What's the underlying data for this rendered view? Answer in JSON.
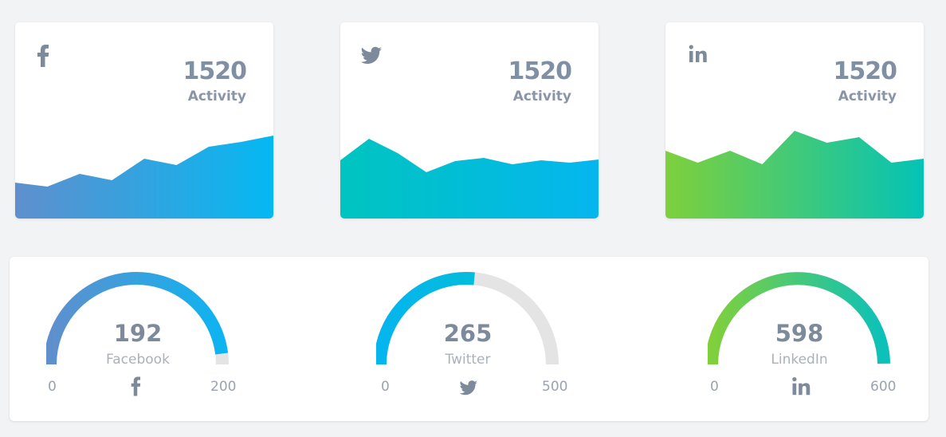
{
  "colors": {
    "icon": "#7d8a9c",
    "track": "#e4e4e4",
    "card_bg": "#ffffff",
    "page_bg": "#f2f3f5"
  },
  "cards": [
    {
      "network": "facebook",
      "icon": "facebook-icon",
      "value": "1520",
      "label": "Activity",
      "gradient": [
        "#5f8fcd",
        "#05b8f2"
      ],
      "series": [
        45,
        40,
        56,
        48,
        75,
        67,
        90,
        96,
        104
      ]
    },
    {
      "network": "twitter",
      "icon": "twitter-icon",
      "value": "1520",
      "label": "Activity",
      "gradient": [
        "#00c4c0",
        "#05b6ef"
      ],
      "series": [
        73,
        100,
        82,
        58,
        72,
        76,
        68,
        73,
        70,
        74
      ]
    },
    {
      "network": "linkedin",
      "icon": "linkedin-icon",
      "value": "1520",
      "label": "Activity",
      "gradient": [
        "#7ed03c",
        "#04c3b6"
      ],
      "series": [
        85,
        70,
        85,
        68,
        110,
        95,
        102,
        70,
        75
      ]
    }
  ],
  "gauges": [
    {
      "network": "facebook",
      "icon": "facebook-icon",
      "value": "192",
      "current": 192,
      "label": "Facebook",
      "min": "0",
      "max": "200",
      "max_value": 200,
      "gradient": [
        "#5f8fcd",
        "#0db4f0"
      ]
    },
    {
      "network": "twitter",
      "icon": "twitter-icon",
      "value": "265",
      "current": 265,
      "label": "Twitter",
      "min": "0",
      "max": "500",
      "max_value": 500,
      "gradient": [
        "#05b5ee",
        "#02c2cc"
      ]
    },
    {
      "network": "linkedin",
      "icon": "linkedin-icon",
      "value": "598",
      "current": 598,
      "label": "LinkedIn",
      "min": "0",
      "max": "600",
      "max_value": 600,
      "gradient": [
        "#80d03b",
        "#0cc1b9"
      ]
    }
  ]
}
